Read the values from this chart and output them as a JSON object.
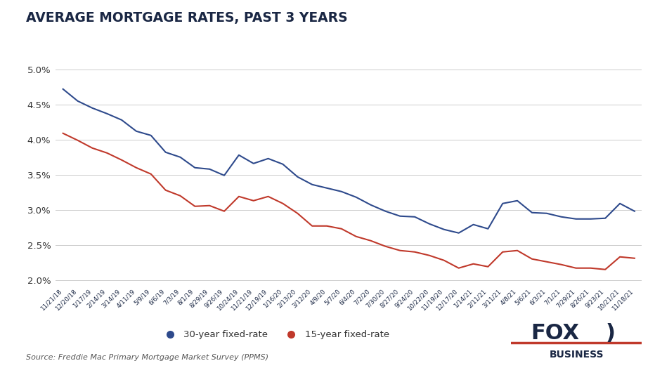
{
  "title": "AVERAGE MORTGAGE RATES, PAST 3 YEARS",
  "title_color": "#1a2744",
  "background_color": "#ffffff",
  "ylim": [
    1.9,
    5.15
  ],
  "yticks": [
    2.0,
    2.5,
    3.0,
    3.5,
    4.0,
    4.5,
    5.0
  ],
  "source_text": "Source: Freddie Mac Primary Mortgage Market Survey (PPMS)",
  "legend_30yr": "30-year fixed-rate",
  "legend_15yr": "15-year fixed-rate",
  "color_30yr": "#2e4a8c",
  "color_15yr": "#c0392b",
  "x_labels": [
    "11/21/18",
    "12/20/18",
    "1/17/19",
    "2/14/19",
    "3/14/19",
    "4/11/19",
    "5/9/19",
    "6/6/19",
    "7/3/19",
    "8/1/19",
    "8/29/19",
    "9/26/19",
    "10/24/19",
    "11/21/19",
    "12/19/19",
    "1/16/20",
    "2/13/20",
    "3/12/20",
    "4/9/20",
    "5/7/20",
    "6/4/20",
    "7/2/20",
    "7/30/20",
    "8/27/20",
    "9/24/20",
    "10/22/20",
    "11/19/20",
    "12/17/20",
    "1/14/21",
    "2/11/21",
    "3/11/21",
    "4/8/21",
    "5/6/21",
    "6/3/21",
    "7/1/21",
    "7/29/21",
    "8/26/21",
    "9/23/21",
    "10/21/21",
    "11/18/21"
  ],
  "data_30yr": [
    4.72,
    4.55,
    4.45,
    4.37,
    4.28,
    4.12,
    4.06,
    3.82,
    3.75,
    3.6,
    3.58,
    3.49,
    3.78,
    3.66,
    3.73,
    3.65,
    3.47,
    3.36,
    3.31,
    3.26,
    3.18,
    3.07,
    2.98,
    2.91,
    2.9,
    2.8,
    2.72,
    2.67,
    2.79,
    2.73,
    3.09,
    3.13,
    2.96,
    2.95,
    2.9,
    2.87,
    2.87,
    2.88,
    3.09,
    2.98
  ],
  "data_15yr": [
    4.09,
    3.99,
    3.88,
    3.81,
    3.71,
    3.6,
    3.51,
    3.28,
    3.2,
    3.05,
    3.06,
    2.98,
    3.19,
    3.13,
    3.19,
    3.09,
    2.95,
    2.77,
    2.77,
    2.73,
    2.62,
    2.56,
    2.48,
    2.42,
    2.4,
    2.35,
    2.28,
    2.17,
    2.23,
    2.19,
    2.4,
    2.42,
    2.3,
    2.26,
    2.22,
    2.17,
    2.17,
    2.15,
    2.33,
    2.31
  ]
}
